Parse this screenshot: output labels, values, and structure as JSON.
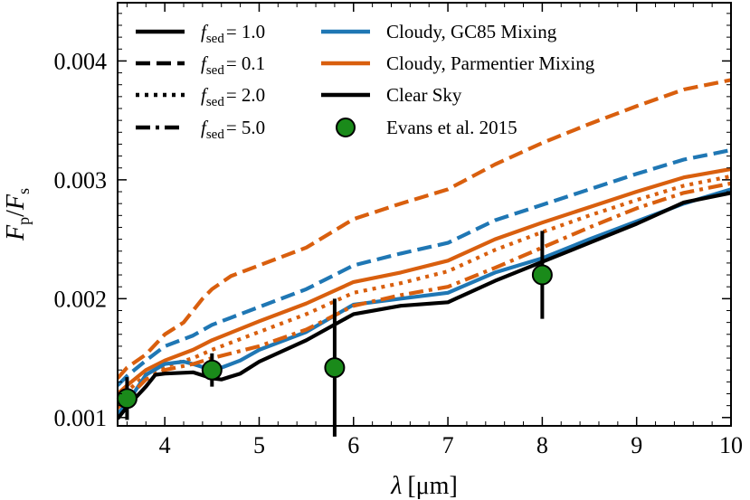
{
  "chart_data": {
    "type": "line",
    "xlabel_symbol": "λ",
    "xlabel_unit": "[μm]",
    "ylabel_main_f": "F",
    "ylabel_sub_p": "p",
    "ylabel_slash": "/",
    "ylabel_sub_s": "s",
    "xlim": [
      3.5,
      10.0
    ],
    "ylim": [
      0.00093,
      0.00449
    ],
    "xticks": [
      4,
      5,
      6,
      7,
      8,
      9,
      10
    ],
    "xtick_labels": [
      "4",
      "5",
      "6",
      "7",
      "8",
      "9",
      "10"
    ],
    "yticks": [
      0.001,
      0.002,
      0.003,
      0.004
    ],
    "ytick_labels": [
      "0.001",
      "0.002",
      "0.003",
      "0.004"
    ],
    "grid": false,
    "colors": {
      "gc85": "#1f77b4",
      "parmentier": "#d95f0e",
      "clear": "#000000",
      "observed_fill": "#1a8a1a"
    },
    "legend_left": [
      {
        "sym": "f",
        "sub": "sed",
        "value": "= 1.0",
        "dash": "solid"
      },
      {
        "sym": "f",
        "sub": "sed",
        "value": "= 0.1",
        "dash": "dashed"
      },
      {
        "sym": "f",
        "sub": "sed",
        "value": "= 2.0",
        "dash": "dotted"
      },
      {
        "sym": "f",
        "sub": "sed",
        "value": "= 5.0",
        "dash": "dashdot"
      }
    ],
    "legend_right": [
      {
        "label": "Cloudy, GC85 Mixing",
        "kind": "line",
        "color": "#1f77b4"
      },
      {
        "label": "Cloudy, Parmentier Mixing",
        "kind": "line",
        "color": "#d95f0e"
      },
      {
        "label": "Clear Sky",
        "kind": "line",
        "color": "#000000"
      },
      {
        "label": "Evans et al. 2015",
        "kind": "marker",
        "color": "#1a8a1a"
      }
    ],
    "series": [
      {
        "name": "Parmentier f_sed=0.1",
        "color": "#d95f0e",
        "dash": "dashed",
        "x": [
          3.5,
          3.6,
          3.8,
          4.0,
          4.2,
          4.3,
          4.4,
          4.5,
          4.7,
          5.0,
          5.5,
          6.0,
          6.5,
          7.0,
          7.5,
          8.0,
          8.5,
          9.0,
          9.5,
          10.0
        ],
        "y": [
          0.00133,
          0.00142,
          0.00153,
          0.0017,
          0.0018,
          0.0019,
          0.002,
          0.00208,
          0.00219,
          0.00228,
          0.00243,
          0.00267,
          0.0028,
          0.00292,
          0.00313,
          0.00331,
          0.00347,
          0.00362,
          0.00376,
          0.00384
        ]
      },
      {
        "name": "GC85 f_sed=0.1",
        "color": "#1f77b4",
        "dash": "dashed",
        "x": [
          3.5,
          3.6,
          3.8,
          4.0,
          4.3,
          4.5,
          5.0,
          5.5,
          6.0,
          6.5,
          7.0,
          7.5,
          8.0,
          8.5,
          9.0,
          9.5,
          10.0
        ],
        "y": [
          0.00127,
          0.00135,
          0.00148,
          0.0016,
          0.00169,
          0.00178,
          0.00193,
          0.00208,
          0.00228,
          0.00238,
          0.00247,
          0.00266,
          0.00279,
          0.00292,
          0.00305,
          0.00317,
          0.00325
        ]
      },
      {
        "name": "Parmentier f_sed=1.0",
        "color": "#d95f0e",
        "dash": "solid",
        "x": [
          3.5,
          3.6,
          3.8,
          4.0,
          4.3,
          4.5,
          5.0,
          5.5,
          6.0,
          6.5,
          7.0,
          7.5,
          8.0,
          8.5,
          9.0,
          9.5,
          10.0
        ],
        "y": [
          0.0012,
          0.00127,
          0.0014,
          0.00148,
          0.00157,
          0.00165,
          0.00181,
          0.00196,
          0.00214,
          0.00222,
          0.00232,
          0.0025,
          0.00264,
          0.00277,
          0.0029,
          0.00302,
          0.00309
        ]
      },
      {
        "name": "Parmentier f_sed=2.0",
        "color": "#d95f0e",
        "dash": "dotted",
        "x": [
          3.5,
          3.6,
          3.8,
          4.0,
          4.3,
          4.5,
          5.0,
          5.5,
          6.0,
          6.5,
          7.0,
          7.5,
          8.0,
          8.5,
          9.0,
          9.5,
          10.0
        ],
        "y": [
          0.00115,
          0.00122,
          0.00136,
          0.00143,
          0.0015,
          0.00157,
          0.00172,
          0.00187,
          0.00205,
          0.00213,
          0.00223,
          0.00241,
          0.00256,
          0.0027,
          0.00283,
          0.00295,
          0.00303
        ]
      },
      {
        "name": "GC85 f_sed=1.0",
        "color": "#1f77b4",
        "dash": "solid",
        "x": [
          3.5,
          3.6,
          3.8,
          4.0,
          4.2,
          4.3,
          4.5,
          4.6,
          4.8,
          5.0,
          5.5,
          6.0,
          6.5,
          7.0,
          7.5,
          8.0,
          8.5,
          9.0,
          9.5,
          10.0
        ],
        "y": [
          0.00103,
          0.00112,
          0.00136,
          0.00145,
          0.00147,
          0.00145,
          0.0014,
          0.00142,
          0.00148,
          0.00157,
          0.00172,
          0.00195,
          0.002,
          0.00205,
          0.00222,
          0.00234,
          0.0025,
          0.00265,
          0.0028,
          0.00292
        ]
      },
      {
        "name": "Parmentier f_sed=5.0",
        "color": "#d95f0e",
        "dash": "dashdot",
        "x": [
          3.5,
          3.6,
          3.8,
          4.0,
          4.3,
          4.5,
          5.0,
          5.5,
          6.0,
          6.5,
          7.0,
          7.5,
          8.0,
          8.5,
          9.0,
          9.5,
          10.0
        ],
        "y": [
          0.00108,
          0.00116,
          0.00132,
          0.0014,
          0.00145,
          0.0015,
          0.0016,
          0.00174,
          0.00194,
          0.00203,
          0.0021,
          0.00226,
          0.00243,
          0.0026,
          0.00276,
          0.00289,
          0.00297
        ]
      },
      {
        "name": "Clear Sky",
        "color": "#000000",
        "dash": "solid",
        "x": [
          3.5,
          3.6,
          3.8,
          3.9,
          4.0,
          4.3,
          4.5,
          4.6,
          4.8,
          5.0,
          5.5,
          6.0,
          6.5,
          7.0,
          7.5,
          8.0,
          8.5,
          9.0,
          9.5,
          10.0
        ],
        "y": [
          0.00099,
          0.00109,
          0.00126,
          0.00136,
          0.00137,
          0.00138,
          0.00133,
          0.00132,
          0.00137,
          0.00147,
          0.00165,
          0.00187,
          0.00194,
          0.00197,
          0.00215,
          0.00231,
          0.00247,
          0.00263,
          0.00281,
          0.00289
        ]
      }
    ],
    "observations": {
      "name": "Evans et al. 2015",
      "x": [
        3.6,
        4.5,
        5.8,
        8.0
      ],
      "y": [
        0.00116,
        0.0014,
        0.00142,
        0.0022
      ],
      "yerr": [
        0.00018,
        0.00014,
        0.00058,
        0.00037
      ]
    }
  }
}
